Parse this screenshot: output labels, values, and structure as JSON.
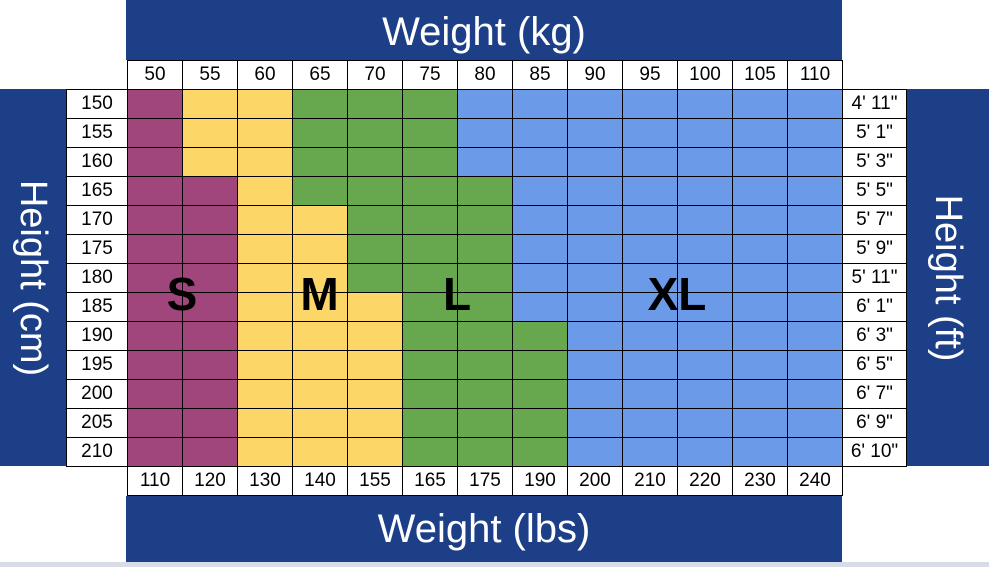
{
  "colors": {
    "band": "#1c3f87",
    "S": "#a0467c",
    "M": "#fcd667",
    "L": "#67a84e",
    "XL": "#6b9be8"
  },
  "titles": {
    "top": "Weight (kg)",
    "bottom": "Weight (lbs)",
    "left": "Height (cm)",
    "right": "Height (ft)"
  },
  "chart_data": {
    "type": "heatmap",
    "x_kg": [
      "50",
      "55",
      "60",
      "65",
      "70",
      "75",
      "80",
      "85",
      "90",
      "95",
      "100",
      "105",
      "110"
    ],
    "x_lbs": [
      "110",
      "120",
      "130",
      "140",
      "155",
      "165",
      "175",
      "190",
      "200",
      "210",
      "220",
      "230",
      "240"
    ],
    "y_cm": [
      "150",
      "155",
      "160",
      "165",
      "170",
      "175",
      "180",
      "185",
      "190",
      "195",
      "200",
      "205",
      "210"
    ],
    "y_ft": [
      "4' 11\"",
      "5' 1\"",
      "5' 3\"",
      "5' 5\"",
      "5' 7\"",
      "5' 9\"",
      "5' 11\"",
      "6' 1\"",
      "6' 3\"",
      "6' 5\"",
      "6' 7\"",
      "6' 9\"",
      "6' 10\""
    ],
    "sizes": [
      "S",
      "M",
      "L",
      "XL"
    ],
    "grid": [
      [
        "S",
        "M",
        "M",
        "L",
        "L",
        "L",
        "XL",
        "XL",
        "XL",
        "XL",
        "XL",
        "XL",
        "XL"
      ],
      [
        "S",
        "M",
        "M",
        "L",
        "L",
        "L",
        "XL",
        "XL",
        "XL",
        "XL",
        "XL",
        "XL",
        "XL"
      ],
      [
        "S",
        "M",
        "M",
        "L",
        "L",
        "L",
        "XL",
        "XL",
        "XL",
        "XL",
        "XL",
        "XL",
        "XL"
      ],
      [
        "S",
        "S",
        "M",
        "L",
        "L",
        "L",
        "L",
        "XL",
        "XL",
        "XL",
        "XL",
        "XL",
        "XL"
      ],
      [
        "S",
        "S",
        "M",
        "M",
        "L",
        "L",
        "L",
        "XL",
        "XL",
        "XL",
        "XL",
        "XL",
        "XL"
      ],
      [
        "S",
        "S",
        "M",
        "M",
        "L",
        "L",
        "L",
        "XL",
        "XL",
        "XL",
        "XL",
        "XL",
        "XL"
      ],
      [
        "S",
        "S",
        "M",
        "M",
        "L",
        "L",
        "L",
        "XL",
        "XL",
        "XL",
        "XL",
        "XL",
        "XL"
      ],
      [
        "S",
        "S",
        "M",
        "M",
        "M",
        "L",
        "L",
        "XL",
        "XL",
        "XL",
        "XL",
        "XL",
        "XL"
      ],
      [
        "S",
        "S",
        "M",
        "M",
        "M",
        "L",
        "L",
        "L",
        "XL",
        "XL",
        "XL",
        "XL",
        "XL"
      ],
      [
        "S",
        "S",
        "M",
        "M",
        "M",
        "L",
        "L",
        "L",
        "XL",
        "XL",
        "XL",
        "XL",
        "XL"
      ],
      [
        "S",
        "S",
        "M",
        "M",
        "M",
        "L",
        "L",
        "L",
        "XL",
        "XL",
        "XL",
        "XL",
        "XL"
      ],
      [
        "S",
        "S",
        "M",
        "M",
        "M",
        "L",
        "L",
        "L",
        "XL",
        "XL",
        "XL",
        "XL",
        "XL"
      ],
      [
        "S",
        "S",
        "M",
        "M",
        "M",
        "L",
        "L",
        "L",
        "XL",
        "XL",
        "XL",
        "XL",
        "XL"
      ]
    ]
  }
}
